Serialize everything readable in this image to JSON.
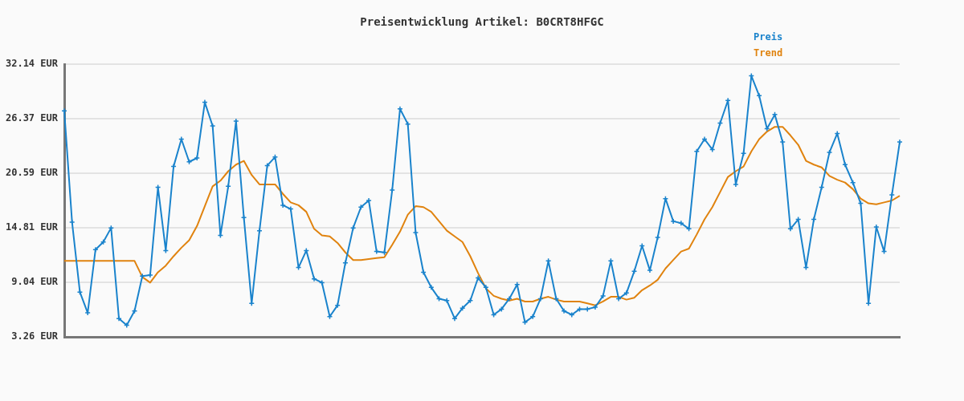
{
  "chart_data": {
    "type": "line",
    "title": "Preisentwicklung Artikel: B0CRT8HFGC",
    "categories": [
      null,
      null,
      null,
      null,
      null,
      null,
      null,
      null,
      null,
      null,
      null,
      null,
      null,
      null,
      null,
      null,
      null,
      null,
      null,
      null,
      null,
      null,
      null,
      null,
      null,
      null,
      null,
      null,
      null,
      null,
      null,
      null,
      null,
      null,
      null,
      null,
      null,
      null,
      null,
      null,
      null,
      null,
      null,
      null,
      null,
      null,
      null,
      null,
      null,
      null,
      null,
      null,
      null,
      null,
      null,
      null,
      null,
      null,
      null,
      null,
      null,
      null,
      null,
      null,
      null,
      null,
      null,
      null,
      null,
      null,
      null,
      null,
      null,
      null,
      null,
      null,
      null,
      null,
      null,
      null,
      null,
      null,
      null,
      null,
      null,
      null,
      null,
      null,
      null,
      null,
      null,
      null,
      null,
      null,
      null,
      null,
      null,
      null,
      null,
      null,
      null,
      null,
      null,
      null,
      null,
      null,
      null,
      null
    ],
    "series": [
      {
        "name": "Preis",
        "color": "#1a83cc",
        "marker": "cross",
        "values": [
          27.2,
          15.4,
          8.0,
          5.8,
          12.5,
          13.3,
          14.8,
          5.2,
          4.5,
          6.0,
          9.7,
          9.8,
          19.1,
          12.4,
          21.3,
          24.2,
          21.8,
          22.2,
          28.1,
          25.6,
          14.0,
          19.2,
          26.1,
          15.9,
          6.8,
          14.5,
          21.4,
          22.3,
          17.2,
          16.8,
          10.6,
          12.4,
          9.4,
          9.0,
          5.4,
          6.6,
          11.1,
          14.8,
          17.0,
          17.7,
          12.3,
          12.2,
          18.8,
          27.4,
          25.8,
          14.3,
          10.1,
          8.5,
          7.3,
          7.1,
          5.2,
          6.3,
          7.1,
          9.5,
          8.5,
          5.6,
          6.2,
          7.3,
          8.8,
          4.8,
          5.4,
          7.3,
          11.3,
          7.3,
          6.0,
          5.6,
          6.2,
          6.2,
          6.4,
          7.6,
          11.3,
          7.3,
          7.9,
          10.2,
          12.9,
          10.3,
          13.8,
          17.9,
          15.5,
          15.3,
          14.7,
          22.9,
          24.2,
          23.1,
          25.9,
          28.3,
          19.4,
          22.7,
          30.9,
          28.8,
          25.3,
          26.8,
          23.9,
          14.7,
          15.7,
          10.6,
          15.7,
          19.1,
          22.8,
          24.8,
          21.5,
          19.6,
          17.4,
          6.8,
          14.9,
          12.3,
          18.3,
          23.9
        ]
      },
      {
        "name": "Trend",
        "color": "#e0830f",
        "marker": "none",
        "values": [
          11.3,
          11.3,
          11.3,
          11.3,
          11.3,
          11.3,
          11.3,
          11.3,
          11.3,
          11.3,
          9.6,
          9.0,
          10.1,
          10.8,
          11.8,
          12.7,
          13.5,
          15.0,
          17.1,
          19.2,
          19.8,
          20.8,
          21.5,
          21.9,
          20.4,
          19.4,
          19.4,
          19.4,
          18.4,
          17.5,
          17.2,
          16.5,
          14.7,
          14.0,
          13.9,
          13.2,
          12.2,
          11.4,
          11.4,
          11.5,
          11.6,
          11.7,
          13.0,
          14.4,
          16.2,
          17.1,
          17.0,
          16.5,
          15.5,
          14.5,
          13.9,
          13.3,
          11.8,
          10.0,
          8.4,
          7.6,
          7.3,
          7.1,
          7.3,
          7.0,
          7.0,
          7.3,
          7.5,
          7.2,
          7.0,
          7.0,
          7.0,
          6.8,
          6.6,
          7.0,
          7.5,
          7.5,
          7.2,
          7.4,
          8.2,
          8.7,
          9.3,
          10.5,
          11.4,
          12.3,
          12.6,
          14.1,
          15.7,
          17.0,
          18.6,
          20.2,
          20.8,
          21.3,
          22.9,
          24.2,
          25.0,
          25.5,
          25.5,
          24.6,
          23.6,
          21.9,
          21.5,
          21.2,
          20.3,
          19.9,
          19.6,
          18.9,
          17.9,
          17.4,
          17.3,
          17.5,
          17.7,
          18.2
        ]
      }
    ],
    "ylim": [
      3.26,
      32.14
    ],
    "yticks": [
      {
        "value": 3.26,
        "label": "3.26 EUR"
      },
      {
        "value": 9.04,
        "label": "9.04 EUR"
      },
      {
        "value": 14.81,
        "label": "14.81 EUR"
      },
      {
        "value": 20.59,
        "label": "20.59 EUR"
      },
      {
        "value": 26.37,
        "label": "26.37 EUR"
      },
      {
        "value": 32.14,
        "label": "32.14 EUR"
      }
    ],
    "grid": "y",
    "legend": "top right",
    "tick_labels": "y",
    "line_style": "solid"
  }
}
